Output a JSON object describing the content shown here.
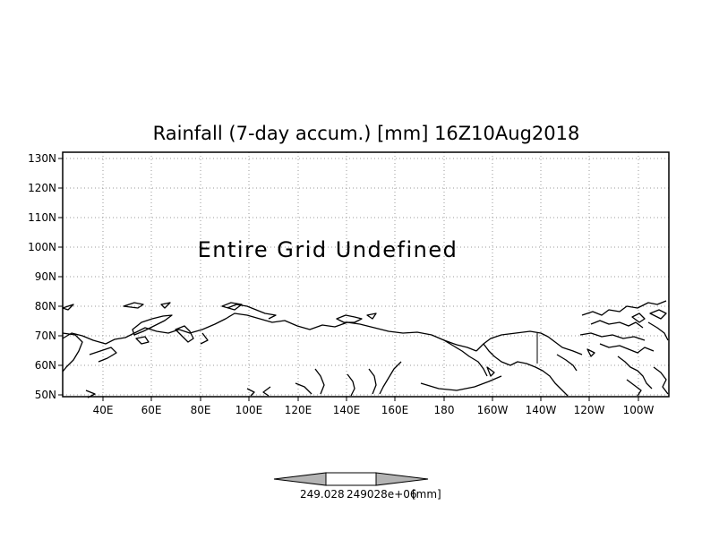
{
  "title": "Rainfall (7-day accum.) [mm] 16Z10Aug2018",
  "message": "Entire Grid Undefined",
  "lat_labels": [
    "130N",
    "120N",
    "110N",
    "100N",
    "90N",
    "80N",
    "70N",
    "60N",
    "50N"
  ],
  "lon_labels": [
    "40E",
    "60E",
    "80E",
    "100E",
    "120E",
    "140E",
    "160E",
    "180",
    "160W",
    "140W",
    "120W",
    "100W"
  ],
  "colorbar": {
    "value_label": "249.028",
    "overlap_label": "249028e+06",
    "unit_label": "[mm]"
  },
  "colors": {
    "frame": "#000000",
    "grid": "#9a9a9a",
    "coast": "#000000",
    "colorbar_arrow": "#b4b4b4",
    "colorbar_center": "#ffffff"
  },
  "icons": [
    "coastline-outline",
    "colorbar-left-arrow",
    "colorbar-right-arrow"
  ]
}
